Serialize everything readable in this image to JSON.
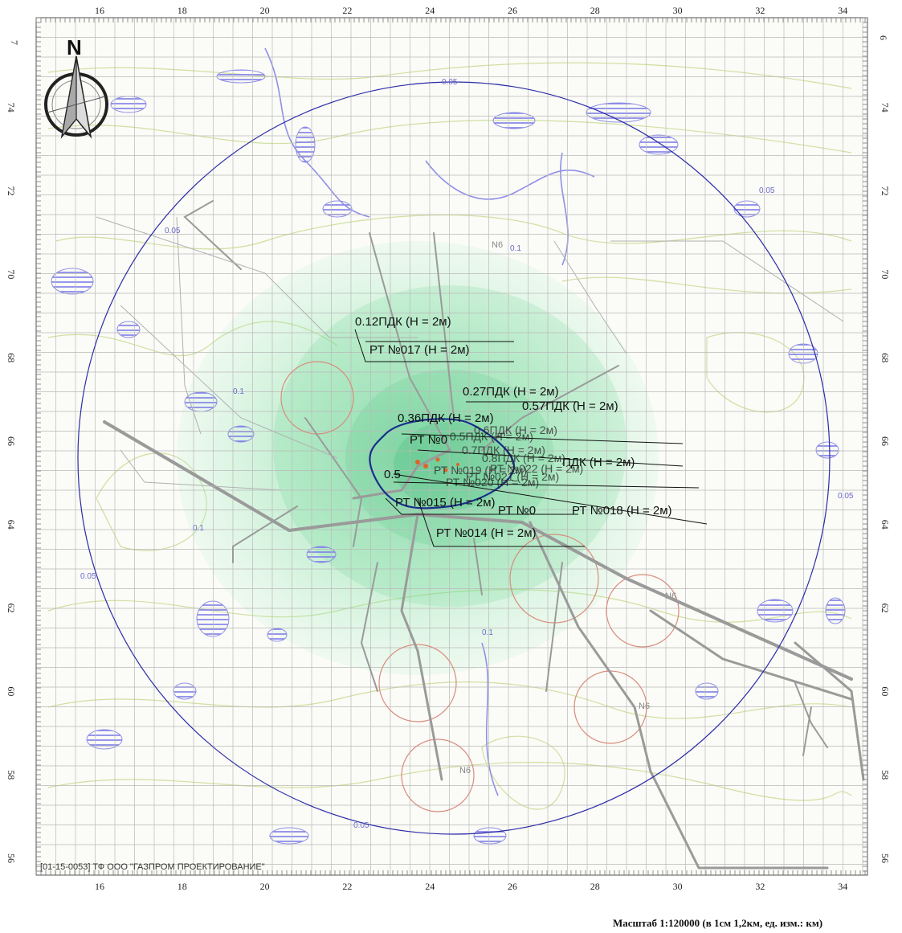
{
  "compass": {
    "letter": "N"
  },
  "axes": {
    "x_ticks": [
      "16",
      "18",
      "20",
      "22",
      "24",
      "26",
      "28",
      "30",
      "32",
      "34"
    ],
    "y_ticks": [
      "56",
      "58",
      "60",
      "62",
      "64",
      "66",
      "68",
      "70",
      "72",
      "74"
    ],
    "left_top_label": "7",
    "right_top_label": "6"
  },
  "contour_labels": [
    "0.05",
    "0.05",
    "0.05",
    "0.05",
    "0.1",
    "0.1",
    "0.1",
    "0.1",
    "0.05",
    "0.05"
  ],
  "zone_labels": [
    "N6",
    "N6",
    "N6",
    "N6"
  ],
  "annotations": [
    "0.12ПДК (Н = 2м)",
    "РТ №017 (Н = 2м)",
    "0.27ПДК (Н = 2м)",
    "0.57ПДК (Н = 2м)",
    "0.36ПДК (Н = 2м)",
    "РТ №0",
    "0.5",
    "РТ №015 (Н = 2м)",
    "РТ №018 (Н = 2м)",
    "РТ №014 (Н = 2м)",
    "РТ №0",
    "ПДК (Н = 2м)"
  ],
  "footer": {
    "stamp": "[01-15-0053] ТФ ООО \"ГАЗПРОМ ПРОЕКТИРОВАНИЕ\"",
    "scale": "Масштаб 1:120000 (в 1см 1,2км, ед. изм.: км)"
  },
  "colors": {
    "grid": "#b9b9b9",
    "outer_circle": "#2b2ba8",
    "inner_isoline": "#1a2d8c",
    "plume": "#6fdc9a",
    "roads": "#9a9a9a",
    "water": "#8f8fe8",
    "contour_land": "#c8d89a"
  }
}
